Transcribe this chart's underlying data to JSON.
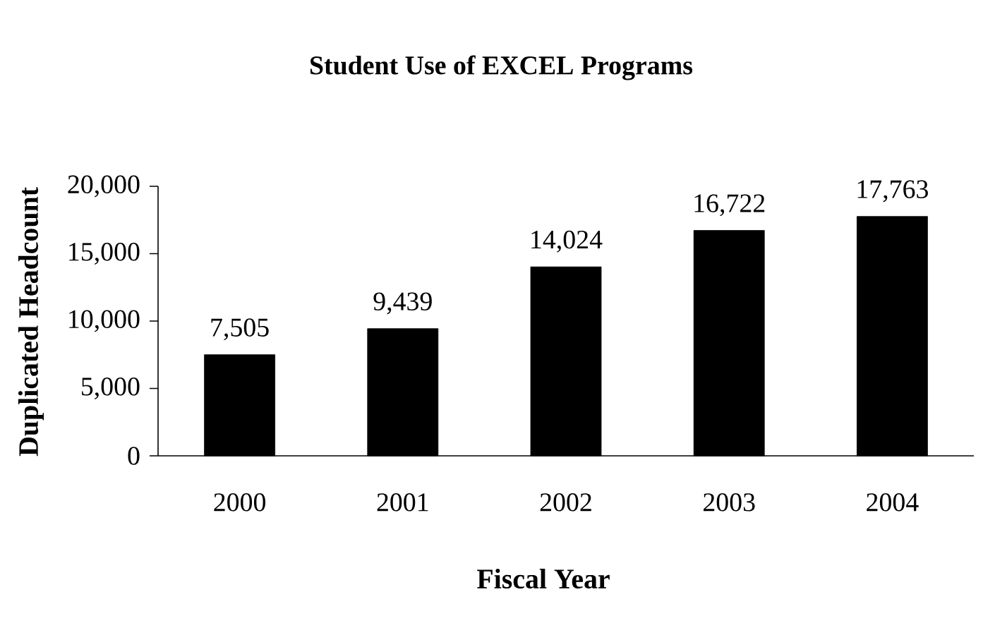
{
  "chart_data": {
    "type": "bar",
    "title": "Student Use of EXCEL Programs",
    "xlabel": "Fiscal Year",
    "ylabel": "Duplicated Headcount",
    "categories": [
      "2000",
      "2001",
      "2002",
      "2003",
      "2004"
    ],
    "values": [
      7505,
      9439,
      14024,
      16722,
      17763
    ],
    "value_labels": [
      "7,505",
      "9,439",
      "14,024",
      "16,722",
      "17,763"
    ],
    "color": "#000000",
    "ylim": [
      0,
      20000
    ],
    "yticks": [
      {
        "value": 0,
        "label": "0"
      },
      {
        "value": 5000,
        "label": "5,000"
      },
      {
        "value": 10000,
        "label": "10,000"
      },
      {
        "value": 15000,
        "label": "15,000"
      },
      {
        "value": 20000,
        "label": "20,000"
      }
    ],
    "grid": false
  }
}
